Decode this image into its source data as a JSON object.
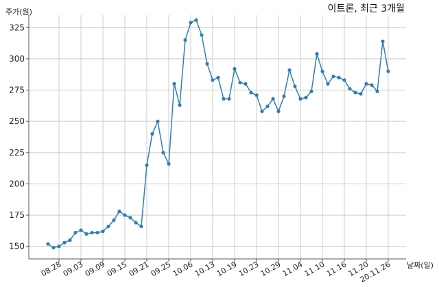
{
  "chart_data": {
    "type": "line",
    "title": "이트론, 최근 3개월",
    "ylabel": "주가(원)",
    "xlabel": "날짜(일)",
    "ylim": [
      140,
      335
    ],
    "yticks": [
      150,
      175,
      200,
      225,
      250,
      275,
      300,
      325
    ],
    "grid": true,
    "line_color": "#2f7eb4",
    "x_tick_labels": [
      "08.28",
      "09.03",
      "09.09",
      "09.15",
      "09.21",
      "09.25",
      "10.06",
      "10.13",
      "10.19",
      "10.23",
      "10.29",
      "11.04",
      "11.10",
      "11.16",
      "11.20",
      "20.11.26"
    ],
    "series": [
      {
        "values": [
          152,
          149,
          150,
          153,
          155,
          161,
          163,
          160,
          161,
          161,
          162,
          166,
          171,
          178,
          175,
          173,
          169,
          166,
          215,
          240,
          250,
          225,
          216,
          280,
          263,
          315,
          329,
          331,
          319,
          296,
          283,
          285,
          268,
          268,
          292,
          281,
          280,
          273,
          271,
          258,
          262,
          268,
          258,
          270,
          291,
          278,
          268,
          269,
          274,
          304,
          290,
          280,
          286,
          285,
          283,
          276,
          273,
          272,
          280,
          279,
          274,
          314,
          290
        ]
      }
    ]
  }
}
